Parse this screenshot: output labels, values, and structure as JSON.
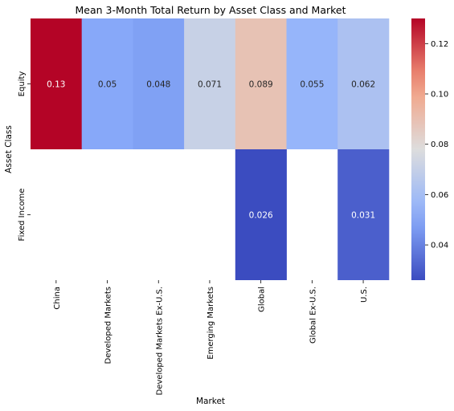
{
  "chart_data": {
    "type": "heatmap",
    "title": "Mean 3-Month Total Return by Asset Class and Market",
    "xlabel": "Market",
    "ylabel": "Asset Class",
    "x": [
      "China",
      "Developed Markets",
      "Developed Markets Ex-U.S.",
      "Emerging Markets",
      "Global",
      "Global Ex-U.S.",
      "U.S."
    ],
    "y": [
      "Equity",
      "Fixed Income"
    ],
    "values": [
      [
        0.13,
        0.05,
        0.048,
        0.071,
        0.089,
        0.055,
        0.062
      ],
      [
        null,
        null,
        null,
        null,
        0.026,
        null,
        0.031
      ]
    ],
    "labels": [
      [
        "0.13",
        "0.05",
        "0.048",
        "0.071",
        "0.089",
        "0.055",
        "0.062"
      ],
      [
        "",
        "",
        "",
        "",
        "0.026",
        "",
        "0.031"
      ]
    ],
    "colormap": "coolwarm",
    "vmin": 0.026,
    "vmax": 0.13,
    "colorbar": {
      "ticks": [
        0.04,
        0.06,
        0.08,
        0.1,
        0.12
      ],
      "tick_labels": [
        "0.04",
        "0.06",
        "0.08",
        "0.10",
        "0.12"
      ]
    },
    "grid": false,
    "legend": "colorbar-right"
  }
}
